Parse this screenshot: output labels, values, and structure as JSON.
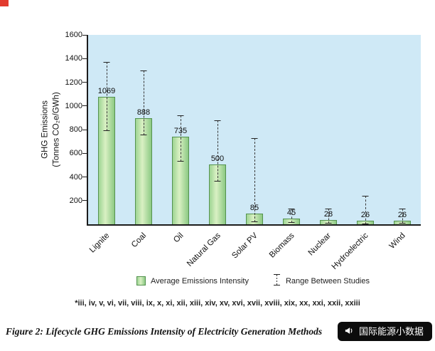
{
  "page": {
    "corner_mark_color": "#e23b2e"
  },
  "chart_data": {
    "type": "bar",
    "title": "",
    "ylabel_line1": "GHG Emissions",
    "ylabel_line2": "(Tonnes CO₂e/GWh)",
    "ylim": [
      0,
      1600
    ],
    "yticks": [
      200,
      400,
      600,
      800,
      1000,
      1200,
      1400,
      1600
    ],
    "categories": [
      "Lignite",
      "Coal",
      "Oil",
      "Natural Gas",
      "Solar PV",
      "Biomass",
      "Nuclear",
      "Hydroelectric",
      "Wind"
    ],
    "values": [
      1069,
      888,
      735,
      500,
      85,
      45,
      28,
      26,
      26
    ],
    "ranges": [
      [
        790,
        1370
      ],
      [
        750,
        1300
      ],
      [
        530,
        920
      ],
      [
        360,
        880
      ],
      [
        20,
        730
      ],
      [
        10,
        130
      ],
      [
        5,
        130
      ],
      [
        2,
        240
      ],
      [
        5,
        130
      ]
    ],
    "grid": false,
    "legend_position": "bottom",
    "plot_bg": "#cfe9f6",
    "bar_border": "#54924f",
    "legend": [
      {
        "type": "bar",
        "label": "Average Emissions Intensity"
      },
      {
        "type": "range",
        "label": "Range Between Studies"
      }
    ]
  },
  "footnote": "*iii, iv, v, vi, vii, viii, ix, x, xi, xii, xiii, xiv, xv, xvi, xvii, xviii, xix, xx, xxi, xxii, xxiii",
  "caption": "Figure 2: Lifecycle GHG Emissions Intensity of Electricity Generation Methods",
  "badge": {
    "icon": "megaphone-icon",
    "text": "国际能源小数据"
  }
}
